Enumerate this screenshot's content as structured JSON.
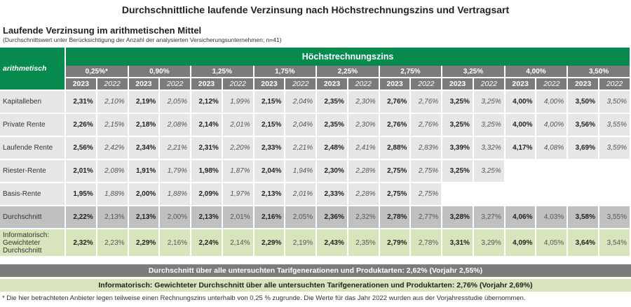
{
  "title": "Durchschnittliche laufende Verzinsung nach Höchstrechnungszins und Vertragsart",
  "subtitle": "Laufende Verzinsung im arithmetischen Mittel",
  "note": "(Durchschnittswert unter Berücksichtigung der Anzahl der analysierten Versicherungsunternehmen; n=41)",
  "corner_label": "arithmetisch",
  "group_header": "Höchstrechnungszins",
  "rates": [
    "0,25%*",
    "0,90%",
    "1,25%",
    "1,75%",
    "2,25%",
    "2,75%",
    "3,25%",
    "4,00%",
    "3,50%"
  ],
  "years": [
    "2023",
    "2022"
  ],
  "rows": [
    {
      "label": "Kapitalleben",
      "type": "d",
      "values": [
        [
          "2,31%",
          "2,10%"
        ],
        [
          "2,19%",
          "2,05%"
        ],
        [
          "2,12%",
          "1,99%"
        ],
        [
          "2,15%",
          "2,04%"
        ],
        [
          "2,35%",
          "2,30%"
        ],
        [
          "2,76%",
          "2,76%"
        ],
        [
          "3,25%",
          "3,25%"
        ],
        [
          "4,00%",
          "4,00%"
        ],
        [
          "3,50%",
          "3,50%"
        ]
      ]
    },
    {
      "label": "Private Rente",
      "type": "d",
      "values": [
        [
          "2,26%",
          "2,15%"
        ],
        [
          "2,18%",
          "2,08%"
        ],
        [
          "2,14%",
          "2,01%"
        ],
        [
          "2,15%",
          "2,04%"
        ],
        [
          "2,35%",
          "2,30%"
        ],
        [
          "2,76%",
          "2,76%"
        ],
        [
          "3,25%",
          "3,25%"
        ],
        [
          "4,00%",
          "4,00%"
        ],
        [
          "3,56%",
          "3,55%"
        ]
      ]
    },
    {
      "label": "Laufende Rente",
      "type": "d",
      "values": [
        [
          "2,56%",
          "2,42%"
        ],
        [
          "2,34%",
          "2,21%"
        ],
        [
          "2,31%",
          "2,20%"
        ],
        [
          "2,33%",
          "2,21%"
        ],
        [
          "2,48%",
          "2,41%"
        ],
        [
          "2,88%",
          "2,83%"
        ],
        [
          "3,39%",
          "3,32%"
        ],
        [
          "4,17%",
          "4,08%"
        ],
        [
          "3,69%",
          "3,59%"
        ]
      ]
    },
    {
      "label": "Riester-Rente",
      "type": "d",
      "values": [
        [
          "2,01%",
          "2,08%"
        ],
        [
          "1,91%",
          "1,79%"
        ],
        [
          "1,98%",
          "1,87%"
        ],
        [
          "2,04%",
          "1,94%"
        ],
        [
          "2,30%",
          "2,28%"
        ],
        [
          "2,75%",
          "2,75%"
        ],
        [
          "3,25%",
          "3,25%"
        ],
        null,
        null
      ]
    },
    {
      "label": "Basis-Rente",
      "type": "d",
      "values": [
        [
          "1,95%",
          "1,88%"
        ],
        [
          "2,00%",
          "1,88%"
        ],
        [
          "2,09%",
          "1,97%"
        ],
        [
          "2,13%",
          "2,01%"
        ],
        [
          "2,33%",
          "2,28%"
        ],
        [
          "2,75%",
          "2,75%"
        ],
        null,
        null,
        null
      ]
    },
    {
      "label": "Durchschnitt",
      "type": "avg",
      "values": [
        [
          "2,22%",
          "2,13%"
        ],
        [
          "2,13%",
          "2,00%"
        ],
        [
          "2,13%",
          "2,01%"
        ],
        [
          "2,16%",
          "2,05%"
        ],
        [
          "2,36%",
          "2,32%"
        ],
        [
          "2,78%",
          "2,77%"
        ],
        [
          "3,28%",
          "3,27%"
        ],
        [
          "4,06%",
          "4,03%"
        ],
        [
          "3,58%",
          "3,55%"
        ]
      ]
    },
    {
      "label": "Informatorisch: Gewichteter Durchschnitt",
      "type": "inf",
      "values": [
        [
          "2,32%",
          "2,23%"
        ],
        [
          "2,29%",
          "2,16%"
        ],
        [
          "2,24%",
          "2,14%"
        ],
        [
          "2,29%",
          "2,19%"
        ],
        [
          "2,43%",
          "2,35%"
        ],
        [
          "2,79%",
          "2,78%"
        ],
        [
          "3,31%",
          "3,29%"
        ],
        [
          "4,09%",
          "4,05%"
        ],
        [
          "3,64%",
          "3,54%"
        ]
      ]
    }
  ],
  "summary_avg": "Durchschnitt über alle untersuchten Tarifgenerationen und Produktarten: 2,62% (Vorjahr 2,55%)",
  "summary_weighted": "Informatorisch: Gewichteter Durchschnitt über alle untersuchten Tarifgenerationen und Produktarten: 2,76% (Vorjahr 2,69%)",
  "footnote": "* Die hier betrachteten Anbieter legen teilweise einen Rechnungszins unterhalb von 0,25 % zugrunde. Die Werte für das Jahr 2022 wurden aus der Vorjahresstudie übernommen."
}
